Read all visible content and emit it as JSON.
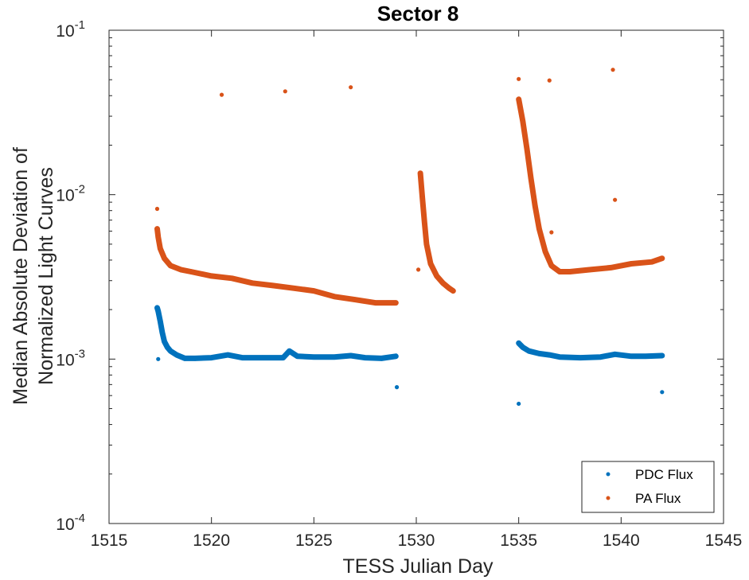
{
  "chart_data": {
    "type": "scatter",
    "title": "Sector 8",
    "xlabel": "TESS Julian Day",
    "ylabel_line1": "Median Absolute Deviation of",
    "ylabel_line2": "Normalized Light Curves",
    "xlim": [
      1515,
      1545
    ],
    "ylim": [
      0.0001,
      0.1
    ],
    "yscale": "log",
    "grid": false,
    "legend_position": "bottom-right",
    "x_ticks": [
      {
        "value": 1515,
        "label": "1515"
      },
      {
        "value": 1520,
        "label": "1520"
      },
      {
        "value": 1525,
        "label": "1525"
      },
      {
        "value": 1530,
        "label": "1530"
      },
      {
        "value": 1535,
        "label": "1535"
      },
      {
        "value": 1540,
        "label": "1540"
      },
      {
        "value": 1545,
        "label": "1545"
      }
    ],
    "y_ticks": [
      {
        "value": 0.0001,
        "base": "10",
        "exp": "-4"
      },
      {
        "value": 0.001,
        "base": "10",
        "exp": "-3"
      },
      {
        "value": 0.01,
        "base": "10",
        "exp": "-2"
      },
      {
        "value": 0.1,
        "base": "10",
        "exp": "-1"
      }
    ],
    "series": [
      {
        "name": "PDC Flux",
        "color": "#0072BD",
        "segments": [
          {
            "x": [
              1517.35,
              1517.4,
              1517.5,
              1517.6,
              1517.7,
              1517.85,
              1518.0,
              1518.3,
              1518.7,
              1519.2,
              1520.0,
              1520.8,
              1521.5,
              1522.5,
              1523.5,
              1523.8,
              1524.2,
              1525.0,
              1526.0,
              1526.8,
              1527.5,
              1528.3,
              1529.0
            ],
            "y": [
              0.00205,
              0.00195,
              0.0017,
              0.00145,
              0.00128,
              0.00118,
              0.00112,
              0.00106,
              0.00101,
              0.00101,
              0.00102,
              0.00106,
              0.00102,
              0.00102,
              0.00102,
              0.00112,
              0.00104,
              0.00103,
              0.00103,
              0.00105,
              0.00102,
              0.00101,
              0.00104
            ]
          },
          {
            "x": [
              1535.0,
              1535.2,
              1535.5,
              1536.0,
              1536.5,
              1537.0,
              1538.0,
              1539.0,
              1539.7,
              1540.5,
              1541.2,
              1542.0
            ],
            "y": [
              0.00125,
              0.00118,
              0.00112,
              0.00108,
              0.00106,
              0.00103,
              0.00102,
              0.00103,
              0.00107,
              0.00104,
              0.00104,
              0.00105
            ]
          }
        ],
        "outliers": [
          {
            "x": 1517.4,
            "y": 0.001
          },
          {
            "x": 1529.05,
            "y": 0.000675
          },
          {
            "x": 1535.0,
            "y": 0.000535
          },
          {
            "x": 1542.0,
            "y": 0.00063
          }
        ]
      },
      {
        "name": "PA Flux",
        "color": "#D95319",
        "segments": [
          {
            "x": [
              1517.35,
              1517.4,
              1517.5,
              1517.7,
              1518.0,
              1518.5,
              1519.0,
              1520.0,
              1521.0,
              1522.0,
              1523.0,
              1524.0,
              1525.0,
              1526.0,
              1527.0,
              1528.0,
              1529.0
            ],
            "y": [
              0.0062,
              0.0055,
              0.0047,
              0.0041,
              0.0037,
              0.0035,
              0.0034,
              0.0032,
              0.0031,
              0.0029,
              0.0028,
              0.0027,
              0.0026,
              0.0024,
              0.0023,
              0.0022,
              0.0022
            ]
          },
          {
            "x": [
              1530.2,
              1530.3,
              1530.4,
              1530.5,
              1530.7,
              1531.0,
              1531.3,
              1531.6,
              1531.8
            ],
            "y": [
              0.0135,
              0.0095,
              0.0068,
              0.005,
              0.0038,
              0.0032,
              0.0029,
              0.0027,
              0.0026
            ]
          },
          {
            "x": [
              1535.0,
              1535.2,
              1535.4,
              1535.6,
              1535.8,
              1536.0,
              1536.3,
              1536.6,
              1537.0,
              1537.5,
              1538.5,
              1539.5,
              1540.5,
              1541.5,
              1542.0
            ],
            "y": [
              0.038,
              0.028,
              0.019,
              0.0125,
              0.0085,
              0.0062,
              0.0045,
              0.0037,
              0.0034,
              0.0034,
              0.0035,
              0.0036,
              0.0038,
              0.0039,
              0.0041
            ]
          }
        ],
        "outliers": [
          {
            "x": 1517.35,
            "y": 0.0082
          },
          {
            "x": 1520.5,
            "y": 0.0405
          },
          {
            "x": 1523.6,
            "y": 0.0425
          },
          {
            "x": 1526.8,
            "y": 0.045
          },
          {
            "x": 1535.0,
            "y": 0.0505
          },
          {
            "x": 1536.5,
            "y": 0.0495
          },
          {
            "x": 1539.6,
            "y": 0.0575
          },
          {
            "x": 1539.7,
            "y": 0.0093
          },
          {
            "x": 1536.6,
            "y": 0.0059
          },
          {
            "x": 1530.1,
            "y": 0.0035
          }
        ]
      }
    ]
  }
}
